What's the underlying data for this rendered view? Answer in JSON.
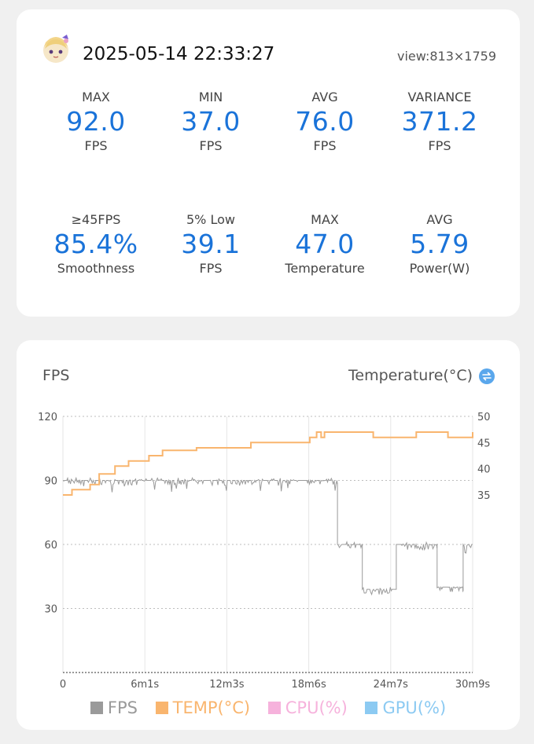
{
  "header": {
    "timestamp": "2025-05-14 22:33:27",
    "view": "view:813×1759"
  },
  "stats": [
    {
      "label": "MAX",
      "value": "92.0",
      "unit": "FPS"
    },
    {
      "label": "MIN",
      "value": "37.0",
      "unit": "FPS"
    },
    {
      "label": "AVG",
      "value": "76.0",
      "unit": "FPS"
    },
    {
      "label": "VARIANCE",
      "value": "371.2",
      "unit": "FPS"
    },
    {
      "label": "≥45FPS",
      "value": "85.4%",
      "unit": "Smoothness"
    },
    {
      "label": "5% Low",
      "value": "39.1",
      "unit": "FPS"
    },
    {
      "label": "MAX",
      "value": "47.0",
      "unit": "Temperature"
    },
    {
      "label": "AVG",
      "value": "5.79",
      "unit": "Power(W)"
    }
  ],
  "chart_header": {
    "left_label": "FPS",
    "right_label": "Temperature(°C)"
  },
  "icons": {
    "avatar": "avatar-icon",
    "toggle": "swap-icon"
  },
  "colors": {
    "accent": "#1a73d9",
    "fps": "#9a9a9a",
    "temp": "#f9b56e",
    "cpu": "#f6b2dc",
    "gpu": "#8ccaf2"
  },
  "chart_data": {
    "type": "line",
    "x_ticks": [
      "0",
      "6m1s",
      "12m3s",
      "18m6s",
      "24m7s",
      "30m9s"
    ],
    "x_range_seconds": [
      0,
      1809
    ],
    "left_axis": {
      "ticks": [
        "30",
        "60",
        "90",
        "120"
      ],
      "range": [
        0,
        120
      ]
    },
    "right_axis": {
      "ticks": [
        "35",
        "40",
        "45",
        "50"
      ],
      "range": [
        35,
        50
      ]
    },
    "grid": true,
    "legend_position": "bottom",
    "legend": [
      "FPS",
      "TEMP(°C)",
      "CPU(%)",
      "GPU(%)"
    ],
    "series": [
      {
        "name": "FPS",
        "points": [
          [
            0,
            90
          ],
          [
            1210,
            90
          ],
          [
            1212,
            60
          ],
          [
            1320,
            60
          ],
          [
            1322,
            39
          ],
          [
            1470,
            39
          ],
          [
            1472,
            60
          ],
          [
            1650,
            60
          ],
          [
            1652,
            40
          ],
          [
            1765,
            40
          ],
          [
            1767,
            60
          ],
          [
            1809,
            60
          ]
        ]
      },
      {
        "name": "TEMP(°C)",
        "points": [
          [
            0,
            35
          ],
          [
            40,
            36
          ],
          [
            120,
            37
          ],
          [
            160,
            39
          ],
          [
            230,
            40.5
          ],
          [
            290,
            41.5
          ],
          [
            380,
            42.5
          ],
          [
            440,
            43.5
          ],
          [
            590,
            44
          ],
          [
            830,
            45
          ],
          [
            1090,
            46
          ],
          [
            1120,
            47
          ],
          [
            1140,
            46
          ],
          [
            1155,
            47
          ],
          [
            1360,
            47
          ],
          [
            1370,
            46
          ],
          [
            1530,
            46
          ],
          [
            1560,
            47
          ],
          [
            1680,
            47
          ],
          [
            1700,
            46
          ],
          [
            1800,
            46
          ],
          [
            1809,
            47
          ]
        ]
      }
    ]
  }
}
